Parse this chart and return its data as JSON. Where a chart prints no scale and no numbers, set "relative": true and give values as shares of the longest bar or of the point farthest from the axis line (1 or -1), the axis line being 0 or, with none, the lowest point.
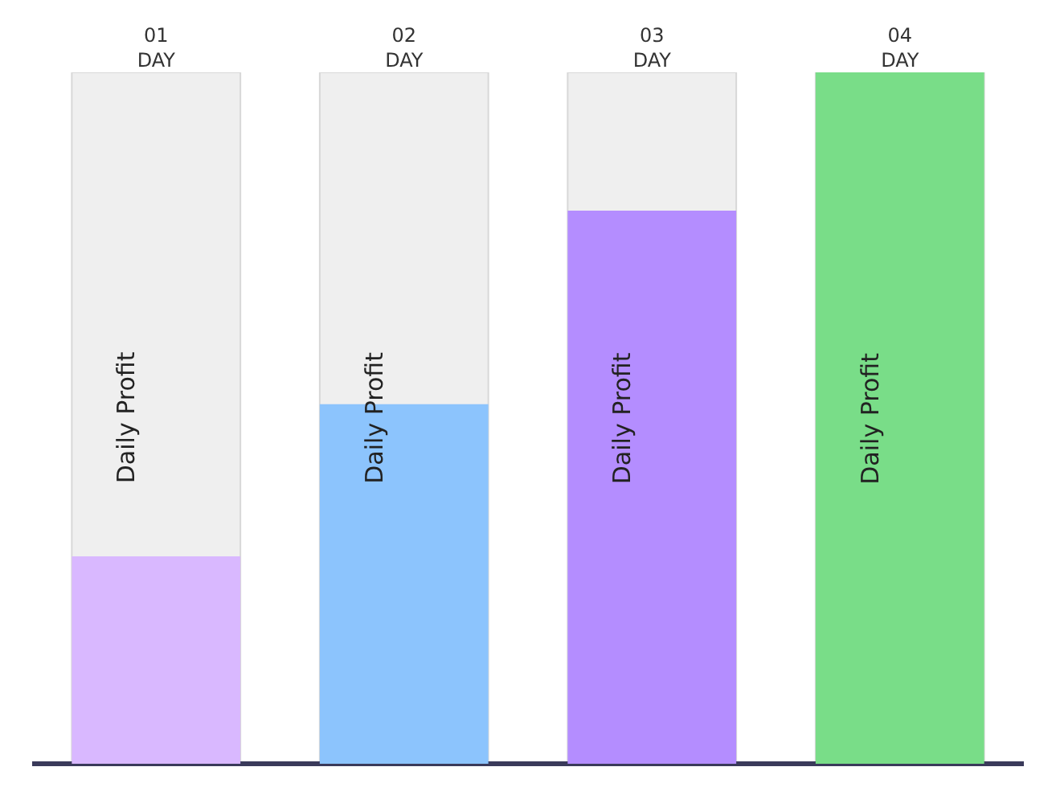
{
  "chart_data": {
    "type": "bar",
    "relative": true,
    "categories": [
      "01\nDAY",
      "02\nDAY",
      "03\nDAY",
      "04\nDAY"
    ],
    "values": [
      0.3,
      0.52,
      0.8,
      1
    ],
    "colors": [
      "#d9b8ff",
      "#8cc4fd",
      "#b48dff",
      "#79dd88"
    ],
    "annotations": [
      "Daily Profit",
      "Daily Profit",
      "Daily Profit",
      "Daily Profit"
    ],
    "grid": false
  }
}
